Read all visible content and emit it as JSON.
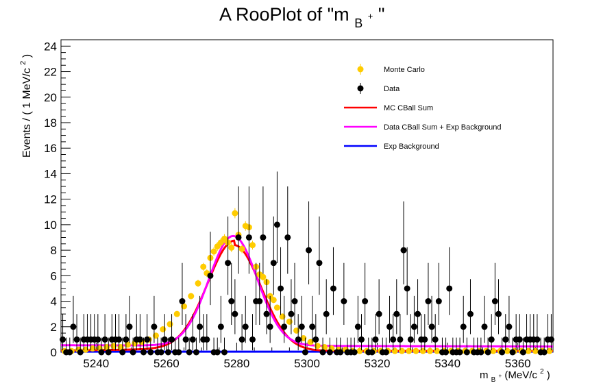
{
  "chart_data": {
    "type": "scatter",
    "title_main": "A RooPlot of \"m",
    "title_sub": "B",
    "title_sup": "+",
    "title_end": "\"",
    "xlabel_main": "m",
    "xlabel_sub": "B",
    "xlabel_sup": "+",
    "xlabel_unit": "(MeV/c",
    "xlabel_unit_sup": "2",
    "xlabel_unit_end": ")",
    "ylabel": "Events / ( 1 MeV/c",
    "ylabel_sup": "2",
    "ylabel_end": " )",
    "xlim": [
      5230,
      5370
    ],
    "ylim": [
      0,
      24.5
    ],
    "xticks": [
      5240,
      5260,
      5280,
      5300,
      5320,
      5340,
      5360
    ],
    "yticks": [
      0,
      2,
      4,
      6,
      8,
      10,
      12,
      14,
      16,
      18,
      20,
      22,
      24
    ],
    "legend_position": "top-right",
    "legend": [
      {
        "label": "Monte Carlo",
        "kind": "marker",
        "color": "#ffcc00"
      },
      {
        "label": "Data",
        "kind": "marker",
        "color": "#000000"
      },
      {
        "label": "MC CBall Sum",
        "kind": "line",
        "color": "#ff0000"
      },
      {
        "label": "Data CBall Sum + Exp Background",
        "kind": "line",
        "color": "#ff00ff"
      },
      {
        "label": "Exp Background",
        "kind": "line",
        "color": "#0000ff"
      }
    ],
    "series": [
      {
        "name": "Data",
        "color": "#000000",
        "x": [
          5230.5,
          5231.5,
          5232.5,
          5233.5,
          5234.5,
          5235.5,
          5236.5,
          5237.5,
          5238.5,
          5239.5,
          5240.5,
          5241.5,
          5242.5,
          5243.5,
          5244.5,
          5245.5,
          5246.5,
          5247.5,
          5248.5,
          5249.5,
          5250.5,
          5251.5,
          5252.5,
          5253.5,
          5254.5,
          5255.5,
          5256.5,
          5257.5,
          5258.5,
          5259.5,
          5260.5,
          5261.5,
          5262.5,
          5263.5,
          5264.5,
          5265.5,
          5266.5,
          5267.5,
          5268.5,
          5269.5,
          5270.5,
          5271.5,
          5272.5,
          5273.5,
          5274.5,
          5275.5,
          5276.5,
          5277.5,
          5278.5,
          5279.5,
          5280.5,
          5281.5,
          5282.5,
          5283.5,
          5284.5,
          5285.5,
          5286.5,
          5287.5,
          5288.5,
          5289.5,
          5290.5,
          5291.5,
          5292.5,
          5293.5,
          5294.5,
          5295.5,
          5296.5,
          5297.5,
          5298.5,
          5299.5,
          5300.5,
          5301.5,
          5302.5,
          5303.5,
          5304.5,
          5305.5,
          5306.5,
          5307.5,
          5308.5,
          5309.5,
          5310.5,
          5311.5,
          5312.5,
          5313.5,
          5314.5,
          5315.5,
          5316.5,
          5317.5,
          5318.5,
          5319.5,
          5320.5,
          5321.5,
          5322.5,
          5323.5,
          5324.5,
          5325.5,
          5326.5,
          5327.5,
          5328.5,
          5329.5,
          5330.5,
          5331.5,
          5332.5,
          5333.5,
          5334.5,
          5335.5,
          5336.5,
          5337.5,
          5338.5,
          5339.5,
          5340.5,
          5341.5,
          5342.5,
          5343.5,
          5344.5,
          5345.5,
          5346.5,
          5347.5,
          5348.5,
          5349.5,
          5350.5,
          5351.5,
          5352.5,
          5353.5,
          5354.5,
          5355.5,
          5356.5,
          5357.5,
          5358.5,
          5359.5,
          5360.5,
          5361.5,
          5362.5,
          5363.5,
          5364.5,
          5365.5,
          5366.5,
          5367.5,
          5368.5,
          5369.5
        ],
        "y": [
          1,
          0,
          0,
          2,
          1,
          0,
          1,
          1,
          1,
          1,
          1,
          0,
          1,
          0,
          1,
          1,
          1,
          0,
          1,
          2,
          0,
          1,
          1,
          0,
          1,
          0,
          2,
          0,
          0,
          1,
          0,
          1,
          0,
          0,
          4,
          1,
          0,
          1,
          0,
          2,
          1,
          1,
          6,
          0,
          0,
          2,
          0,
          7,
          4,
          3,
          9,
          1,
          2,
          9,
          1,
          4,
          4,
          9,
          3,
          2,
          7,
          10,
          5,
          2,
          9,
          3,
          4,
          1,
          2,
          0,
          8,
          2,
          1,
          7,
          0,
          3,
          0,
          5,
          0,
          0,
          4,
          0,
          0,
          0,
          2,
          1,
          4,
          0,
          0,
          1,
          3,
          0,
          0,
          2,
          1,
          3,
          1,
          8,
          5,
          1,
          2,
          3,
          1,
          1,
          4,
          2,
          1,
          4,
          0,
          0,
          5,
          0,
          0,
          0,
          2,
          0,
          3,
          0,
          0,
          0,
          2,
          0,
          1,
          4,
          3,
          0,
          1,
          2,
          0,
          1,
          1,
          0,
          1,
          1,
          1,
          1,
          0,
          0,
          1,
          1
        ],
        "yerr_note": ""
      },
      {
        "name": "Monte Carlo",
        "color": "#ffcc00",
        "x": [
          5231,
          5233,
          5235,
          5237,
          5239,
          5241,
          5243,
          5245,
          5247,
          5249,
          5251,
          5253,
          5255,
          5257,
          5259,
          5261,
          5263,
          5265,
          5267,
          5269,
          5270.5,
          5271.5,
          5272.5,
          5273.5,
          5274.5,
          5275.5,
          5276.5,
          5277.5,
          5278.5,
          5279.5,
          5280.5,
          5281.5,
          5282.5,
          5283.5,
          5284.5,
          5285.5,
          5286.5,
          5287.5,
          5288.5,
          5289.5,
          5290.5,
          5291.5,
          5293,
          5295,
          5297,
          5299,
          5301,
          5303,
          5305,
          5307,
          5309,
          5311,
          5313,
          5315,
          5317,
          5319,
          5321,
          5323,
          5325,
          5327,
          5329,
          5331,
          5333,
          5335,
          5337,
          5339,
          5341,
          5343,
          5345,
          5347,
          5349,
          5351,
          5353,
          5355,
          5357,
          5359,
          5361,
          5363,
          5365,
          5367,
          5369
        ],
        "y": [
          0.1,
          0.1,
          0.2,
          0.2,
          0.3,
          0.3,
          0.4,
          0.5,
          0.4,
          0.6,
          0.7,
          0.8,
          1.0,
          1.3,
          1.8,
          2.2,
          3.0,
          3.6,
          4.4,
          5.4,
          6.7,
          6.2,
          7.4,
          7.9,
          8.3,
          8.6,
          8.9,
          8.6,
          8.2,
          10.9,
          9.2,
          8.1,
          9.9,
          9.8,
          8.4,
          6.7,
          6.1,
          5.9,
          5.5,
          4.4,
          4.1,
          3.5,
          2.8,
          2.4,
          1.7,
          1.1,
          0.8,
          0.5,
          0.4,
          0.3,
          0.2,
          0.2,
          0.1,
          0.1,
          0.1,
          0.1,
          0.1,
          0.1,
          0.1,
          0.1,
          0.1,
          0.1,
          0.1,
          0.1,
          0.1,
          0.1,
          0.1,
          0.1,
          0.1,
          0.1,
          0.1,
          0.1,
          0.1,
          0.1,
          0.1,
          0.1,
          0.1,
          0.1,
          0.1,
          0.1,
          0.1
        ]
      },
      {
        "name": "MC CBall Sum",
        "color": "#ff0000",
        "curve": "gaussian",
        "mean": 5279.3,
        "sigma": 7.6,
        "amplitude": 8.3,
        "baseline": 0.1
      },
      {
        "name": "Data CBall Sum + Exp Background",
        "color": "#ff00ff",
        "curve": "gaussian_plus_exp",
        "mean": 5279.0,
        "sigma": 6.9,
        "amplitude": 8.6,
        "bkg_at_5230": 0.55,
        "bkg_at_5370": 0.45
      },
      {
        "name": "Exp Background",
        "color": "#0000ff",
        "curve": "flat",
        "level": 0.05
      }
    ]
  }
}
